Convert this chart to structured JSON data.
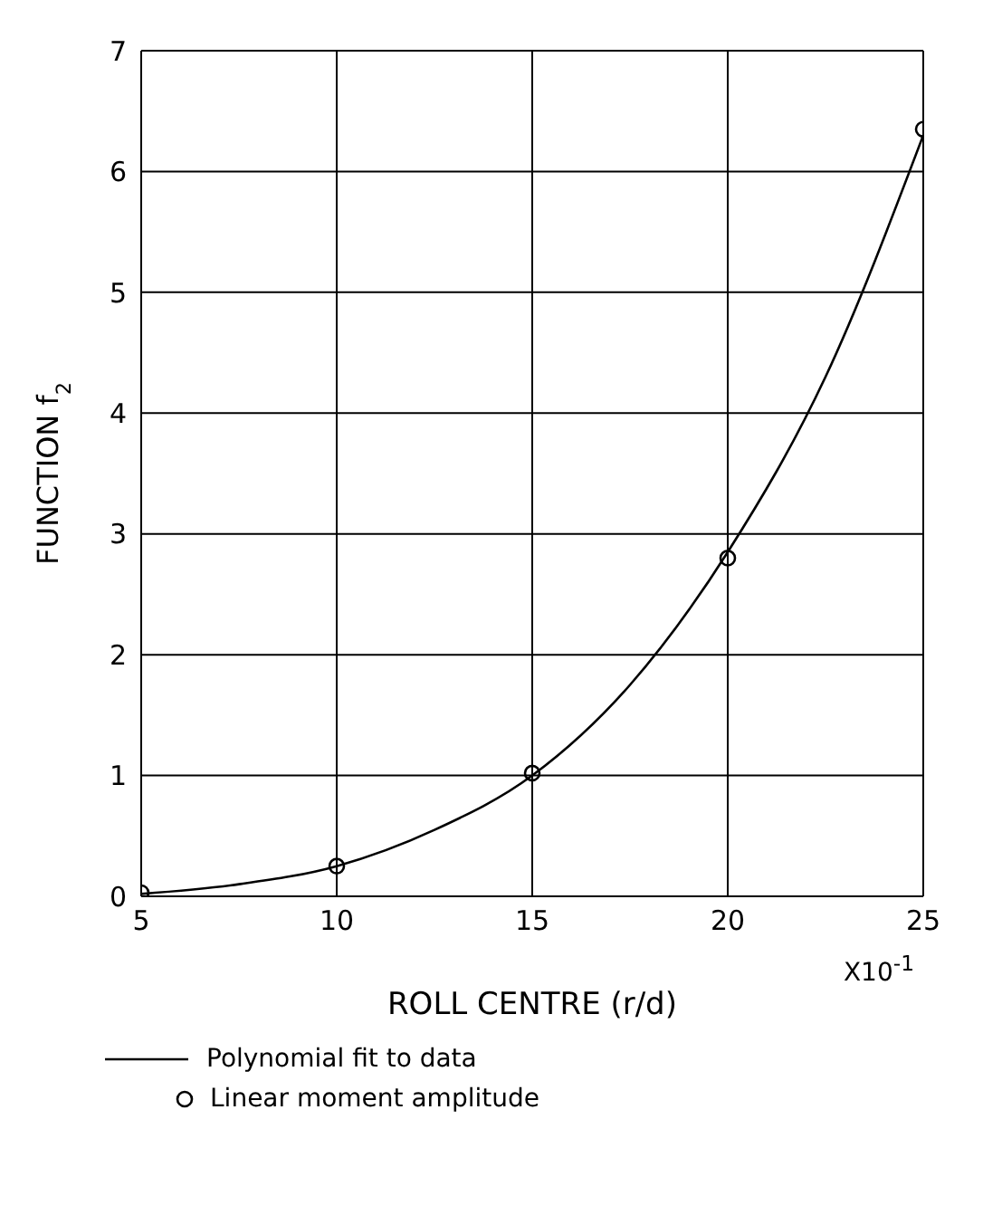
{
  "chart_data": {
    "type": "line",
    "xlabel": "ROLL CENTRE  (r/d)",
    "ylabel": "FUNCTION f$_{2}$",
    "annotations": [
      "X10$^{-1}$"
    ],
    "xlim": [
      5,
      25
    ],
    "xticks": [
      5,
      10,
      15,
      20,
      25
    ],
    "ylim": [
      0,
      7
    ],
    "yticks": [
      0,
      1,
      2,
      3,
      4,
      5,
      6,
      7
    ],
    "grid": true,
    "legend": "bottom",
    "series": [
      {
        "name": "Polynomial fit to data",
        "color": "#000000",
        "marker": "none",
        "line_style": "solid",
        "x": [
          5,
          7.5,
          10,
          12.5,
          15,
          17.5,
          20,
          22.5,
          25
        ],
        "values": [
          0.02,
          0.1,
          0.25,
          0.55,
          1.0,
          1.75,
          2.85,
          4.3,
          6.3
        ]
      },
      {
        "name": "Linear moment amplitude",
        "type": "scatter",
        "color": "#000000",
        "marker": "circle",
        "x": [
          5,
          10,
          15,
          20,
          25
        ],
        "values": [
          0.03,
          0.25,
          1.02,
          2.8,
          6.35
        ]
      }
    ]
  }
}
